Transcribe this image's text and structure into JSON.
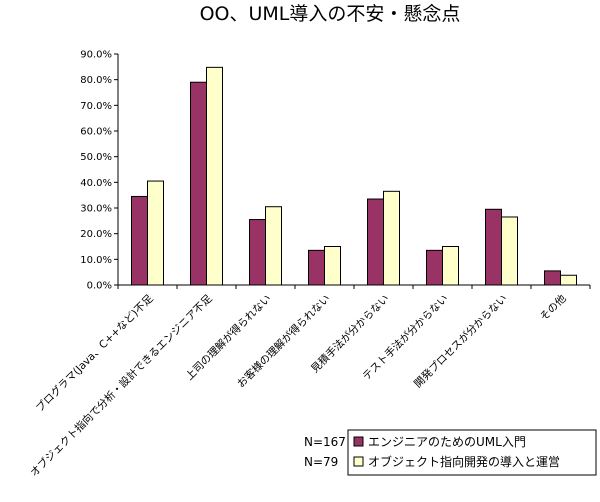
{
  "chart_data": {
    "type": "bar",
    "title": "OO、UML導入の不安・懸念点",
    "xlabel": "",
    "ylabel": "",
    "ylim": [
      0,
      90
    ],
    "yticks": [
      "0.0%",
      "10.0%",
      "20.0%",
      "30.0%",
      "40.0%",
      "50.0%",
      "60.0%",
      "70.0%",
      "80.0%",
      "90.0%"
    ],
    "grid": false,
    "categories": [
      "プログラマ(Java、C++など)不足",
      "オブジェクト指向で分析・設計できるエンジニア不足",
      "上司の理解が得られない",
      "お客様の理解が得られない",
      "見積手法が分からない",
      "テスト手法が分からない",
      "開発プロセスが分からない",
      "その他"
    ],
    "series": [
      {
        "name": "エンジニアのためのUML入門",
        "n_label": "N=167",
        "color": "#993366",
        "values": [
          34.5,
          79.0,
          25.5,
          13.5,
          33.5,
          13.5,
          29.5,
          5.5
        ]
      },
      {
        "name": "オブジェクト指向開発の導入と運営",
        "n_label": "N=79",
        "color": "#ffffcc",
        "values": [
          40.5,
          84.8,
          30.5,
          15.0,
          36.5,
          15.0,
          26.5,
          3.8
        ]
      }
    ],
    "legend_position": "bottom-right"
  }
}
